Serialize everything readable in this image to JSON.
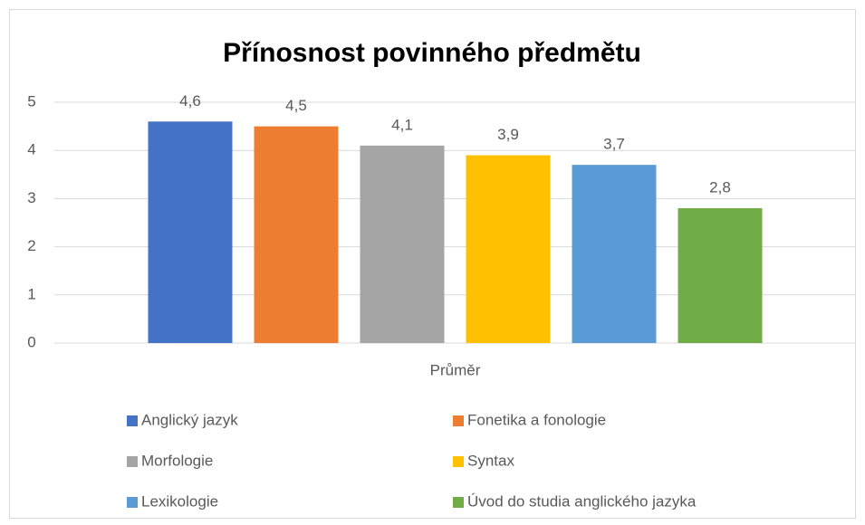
{
  "chart_data": {
    "type": "bar",
    "title": "Přínosnost povinného předmětu",
    "categories": [
      "Průměr"
    ],
    "series": [
      {
        "name": "Anglický jazyk",
        "color": "#4472c4",
        "values": [
          4.6
        ],
        "value_labels": [
          "4,6"
        ]
      },
      {
        "name": "Fonetika a fonologie",
        "color": "#ed7d31",
        "values": [
          4.5
        ],
        "value_labels": [
          "4,5"
        ]
      },
      {
        "name": "Morfologie",
        "color": "#a5a5a5",
        "values": [
          4.1
        ],
        "value_labels": [
          "4,1"
        ]
      },
      {
        "name": "Syntax",
        "color": "#ffc000",
        "values": [
          3.9
        ],
        "value_labels": [
          "3,9"
        ]
      },
      {
        "name": "Lexikologie",
        "color": "#5b9bd5",
        "values": [
          3.7
        ],
        "value_labels": [
          "3,7"
        ]
      },
      {
        "name": "Úvod do studia anglického jazyka",
        "color": "#70ad47",
        "values": [
          2.8
        ],
        "value_labels": [
          "2,8"
        ]
      }
    ],
    "ylim": [
      0,
      5
    ],
    "yticks": [
      0,
      1,
      2,
      3,
      4,
      5
    ],
    "grid": true,
    "legend": "bottom"
  }
}
